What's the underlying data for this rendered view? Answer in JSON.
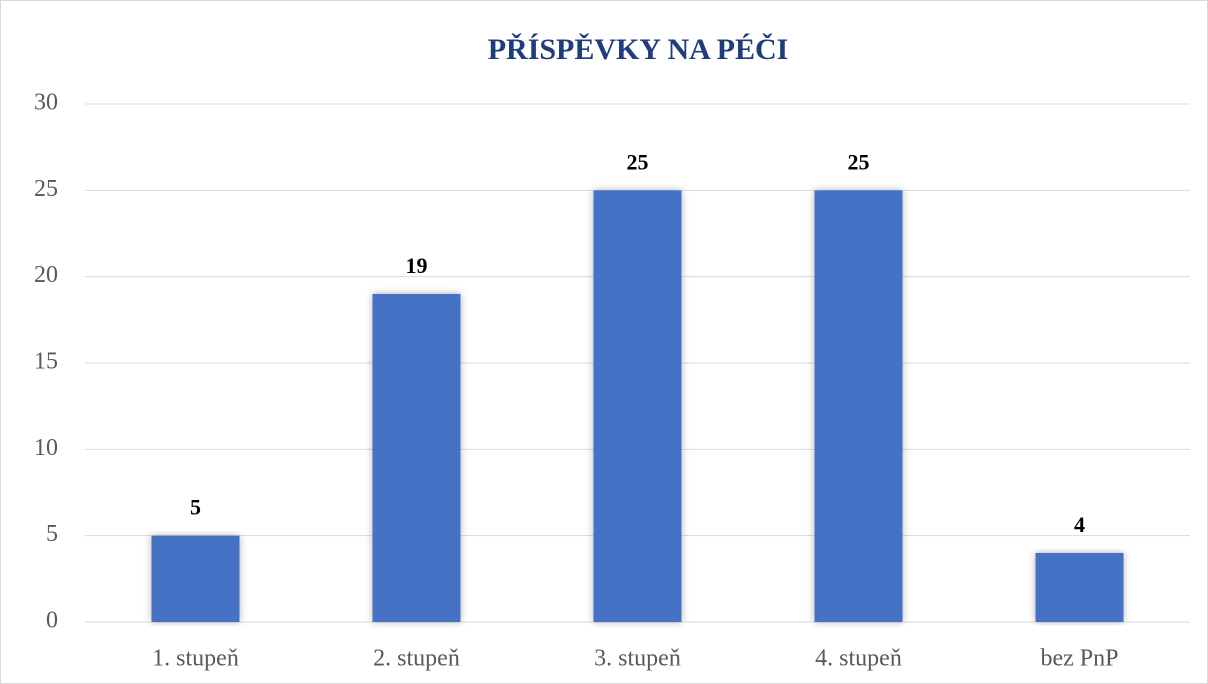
{
  "chart_data": {
    "type": "bar",
    "title": "PŘÍSPĚVKY NA PÉČI",
    "categories": [
      "1. stupeň",
      "2. stupeň",
      "3. stupeň",
      "4. stupeň",
      "bez PnP"
    ],
    "values": [
      5,
      19,
      25,
      25,
      4
    ],
    "color": "#4472c4",
    "ylim": [
      0,
      30
    ],
    "yticks": [
      0,
      5,
      10,
      15,
      20,
      25,
      30
    ],
    "grid": true
  }
}
